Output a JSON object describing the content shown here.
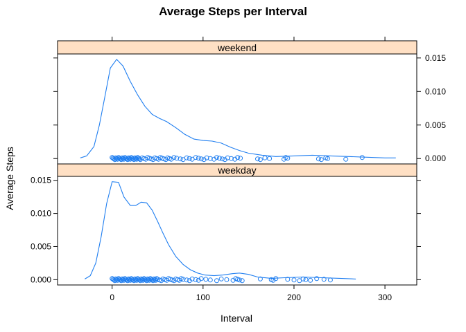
{
  "chart_data": {
    "type": "density",
    "title": "Average Steps per Interval",
    "xlabel": "Interval",
    "ylabel": "Average Steps",
    "xlim": [
      -60,
      335
    ],
    "ylim": [
      -0.0008,
      0.0156
    ],
    "x_ticks": [
      0,
      100,
      200,
      300
    ],
    "y_ticks": [
      0.0,
      0.005,
      0.01,
      0.015
    ],
    "y_tick_labels": [
      "0.000",
      "0.005",
      "0.010",
      "0.015"
    ],
    "grid": false,
    "line_color": "#1f7ef0",
    "strip_color": "#ffe0c4",
    "panels": [
      {
        "name": "weekend",
        "density": [
          [
            -35,
            0.0001
          ],
          [
            -28,
            0.0004
          ],
          [
            -20,
            0.0018
          ],
          [
            -14,
            0.005
          ],
          [
            -8,
            0.0092
          ],
          [
            -2,
            0.0135
          ],
          [
            5,
            0.0148
          ],
          [
            12,
            0.0138
          ],
          [
            20,
            0.0115
          ],
          [
            28,
            0.0095
          ],
          [
            36,
            0.0078
          ],
          [
            44,
            0.0066
          ],
          [
            52,
            0.006
          ],
          [
            60,
            0.0055
          ],
          [
            70,
            0.0046
          ],
          [
            80,
            0.0036
          ],
          [
            90,
            0.0029
          ],
          [
            100,
            0.0027
          ],
          [
            110,
            0.0026
          ],
          [
            120,
            0.0023
          ],
          [
            130,
            0.0017
          ],
          [
            140,
            0.0012
          ],
          [
            150,
            0.0008
          ],
          [
            165,
            0.0005
          ],
          [
            180,
            0.0003
          ],
          [
            200,
            0.0004
          ],
          [
            220,
            0.0005
          ],
          [
            240,
            0.0004
          ],
          [
            260,
            0.0003
          ],
          [
            280,
            0.0002
          ],
          [
            300,
            0.0001
          ],
          [
            312,
            0.0001
          ]
        ],
        "points": [
          0,
          1,
          2,
          3,
          4,
          5,
          6,
          7,
          8,
          9,
          10,
          11,
          12,
          13,
          14,
          15,
          16,
          17,
          18,
          19,
          20,
          21,
          22,
          23,
          24,
          25,
          26,
          27,
          28,
          29,
          30,
          31,
          33,
          35,
          37,
          39,
          41,
          43,
          45,
          47,
          49,
          51,
          53,
          55,
          57,
          59,
          61,
          63,
          65,
          68,
          71,
          75,
          78,
          82,
          85,
          88,
          92,
          95,
          98,
          101,
          104,
          108,
          112,
          115,
          118,
          121,
          124,
          127,
          131,
          135,
          138,
          141,
          160,
          163,
          168,
          173,
          189,
          191,
          193,
          227,
          230,
          235,
          237,
          257,
          275
        ]
      },
      {
        "name": "weekday",
        "density": [
          [
            -30,
            0.0001
          ],
          [
            -24,
            0.0006
          ],
          [
            -18,
            0.0025
          ],
          [
            -12,
            0.0065
          ],
          [
            -6,
            0.0115
          ],
          [
            0,
            0.0148
          ],
          [
            7,
            0.0147
          ],
          [
            13,
            0.0125
          ],
          [
            20,
            0.0112
          ],
          [
            26,
            0.0112
          ],
          [
            32,
            0.0117
          ],
          [
            38,
            0.0116
          ],
          [
            44,
            0.0105
          ],
          [
            50,
            0.0088
          ],
          [
            56,
            0.007
          ],
          [
            62,
            0.0053
          ],
          [
            70,
            0.0035
          ],
          [
            78,
            0.0023
          ],
          [
            86,
            0.0015
          ],
          [
            94,
            0.001
          ],
          [
            102,
            0.0007
          ],
          [
            112,
            0.0006
          ],
          [
            122,
            0.0007
          ],
          [
            132,
            0.0009
          ],
          [
            140,
            0.001
          ],
          [
            150,
            0.0008
          ],
          [
            160,
            0.0004
          ],
          [
            175,
            0.0002
          ],
          [
            190,
            0.0003
          ],
          [
            210,
            0.0004
          ],
          [
            230,
            0.0003
          ],
          [
            250,
            0.0002
          ],
          [
            268,
            0.0001
          ]
        ],
        "points": [
          0,
          1,
          2,
          3,
          4,
          5,
          6,
          7,
          8,
          9,
          10,
          11,
          12,
          13,
          14,
          15,
          16,
          17,
          18,
          19,
          20,
          21,
          22,
          23,
          24,
          25,
          26,
          27,
          28,
          29,
          30,
          31,
          32,
          33,
          34,
          35,
          36,
          37,
          38,
          39,
          40,
          41,
          42,
          43,
          44,
          45,
          46,
          47,
          48,
          49,
          50,
          52,
          54,
          56,
          58,
          60,
          62,
          64,
          66,
          68,
          70,
          72,
          74,
          76,
          78,
          82,
          85,
          88,
          92,
          95,
          98,
          103,
          108,
          115,
          120,
          126,
          133,
          136,
          138,
          140,
          143,
          163,
          175,
          177,
          180,
          193,
          200,
          206,
          210,
          213,
          218,
          225,
          233,
          240
        ]
      }
    ]
  }
}
